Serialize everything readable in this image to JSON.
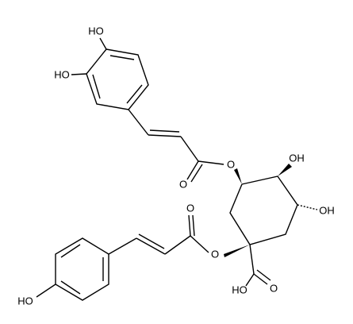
{
  "atoms": [
    "HO",
    "HO",
    "O",
    "O",
    "OH",
    "OH",
    "O",
    "O",
    "HO",
    "O",
    "HO"
  ]
}
